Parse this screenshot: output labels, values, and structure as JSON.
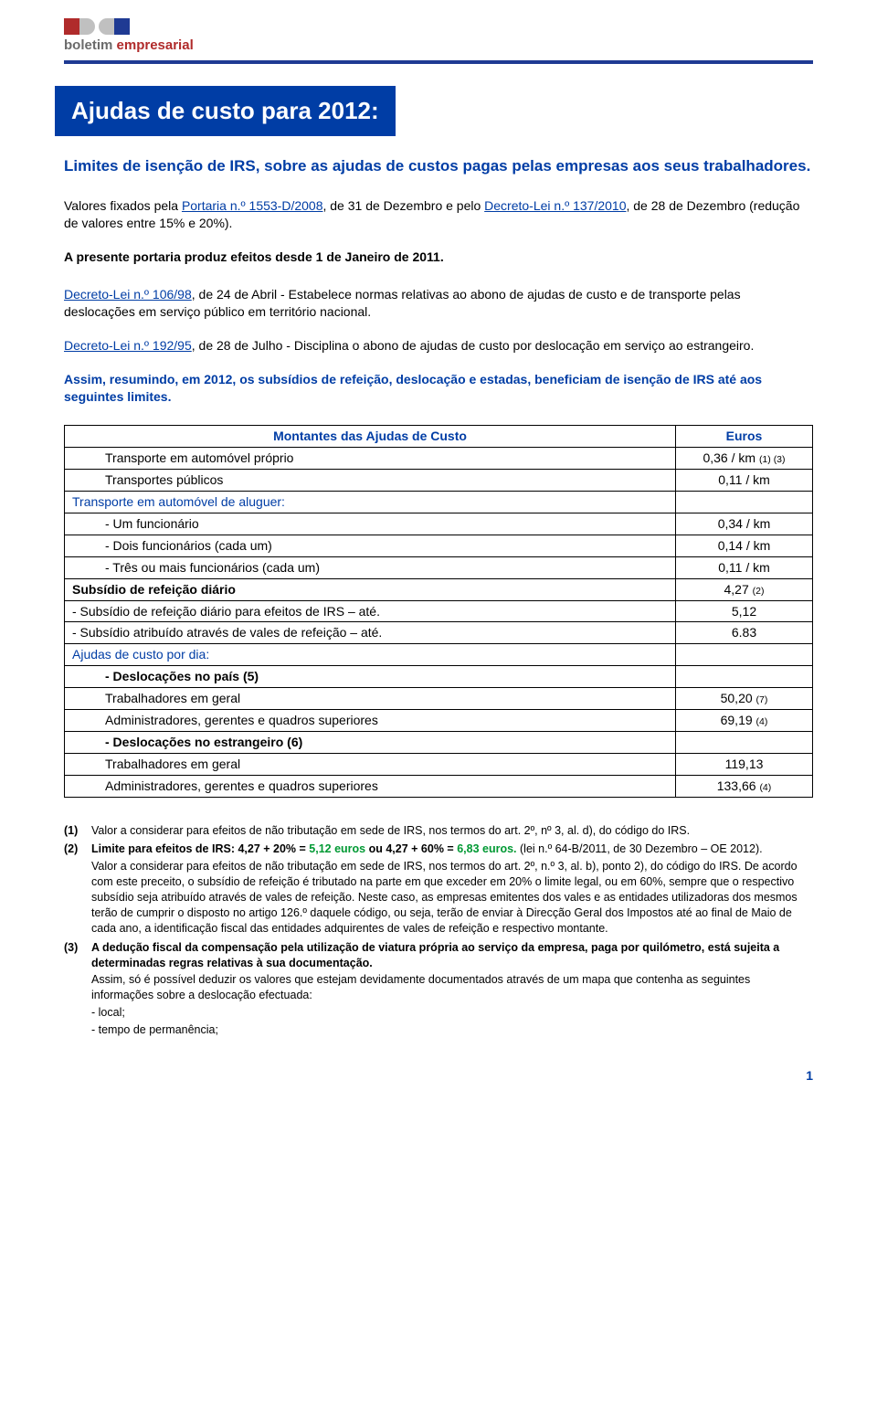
{
  "logo": {
    "word1": "boletim",
    "word2": "empresarial"
  },
  "title": "Ajudas de custo para 2012:",
  "subtitle": "Limites de isenção de IRS, sobre as ajudas de custos pagas pelas empresas aos seus trabalhadores.",
  "p1_a": "Valores fixados pela ",
  "p1_link1": "Portaria n.º 1553-D/2008",
  "p1_b": ", de 31 de Dezembro e pelo ",
  "p1_link2": "Decreto-Lei n.º 137/2010",
  "p1_c": ", de 28 de Dezembro (redução de valores entre 15% e 20%).",
  "p2": "A presente portaria produz efeitos desde 1 de Janeiro de 2011.",
  "p3_link": "Decreto-Lei n.º 106/98",
  "p3_body": ", de 24 de Abril - Estabelece normas relativas ao abono de ajudas de custo e de transporte pelas deslocações em serviço público em território nacional.",
  "p4_link": "Decreto-Lei n.º 192/95",
  "p4_body": ", de 28 de Julho - Disciplina o abono de ajudas de custo por deslocação em serviço ao estrangeiro.",
  "summary": "Assim, resumindo, em 2012, os subsídios de refeição, deslocação e estadas, beneficiam de isenção de IRS até aos seguintes limites.",
  "table": {
    "hdr_left": "Montantes das Ajudas de Custo",
    "hdr_right": "Euros",
    "rows": [
      {
        "label": "Transporte em automóvel próprio",
        "value": "0,36 / km",
        "note": "(1) (3)",
        "indent": true
      },
      {
        "label": "Transportes públicos",
        "value": "0,11 / km",
        "indent": true
      },
      {
        "label": "Transporte em automóvel de aluguer:",
        "value": "",
        "blue": true
      },
      {
        "label": "- Um funcionário",
        "value": "0,34 / km",
        "indent": true
      },
      {
        "label": "- Dois funcionários (cada um)",
        "value": "0,14 / km",
        "indent": true
      },
      {
        "label": "- Três ou mais funcionários (cada um)",
        "value": "0,11 / km",
        "indent": true
      },
      {
        "label": "Subsídio de refeição diário",
        "value": "4,27",
        "note": "(2)",
        "bold": true
      },
      {
        "label": "-    Subsídio de refeição diário para efeitos de IRS – até.",
        "value": "5,12"
      },
      {
        "label": "-    Subsídio atribuído através de vales de refeição – até.",
        "value": "6.83"
      },
      {
        "label": "Ajudas de custo por dia:",
        "value": "",
        "blue": true
      },
      {
        "label": "- Deslocações no país (5)",
        "value": "",
        "indent": true,
        "bold": true
      },
      {
        "label": "Trabalhadores em geral",
        "value": "50,20",
        "note": "(7)",
        "indent": true
      },
      {
        "label": "Administradores, gerentes e quadros superiores",
        "value": "69,19",
        "note": "(4)",
        "indent": true
      },
      {
        "label": "- Deslocações no estrangeiro (6)",
        "value": "",
        "indent": true,
        "bold": true
      },
      {
        "label": "Trabalhadores em geral",
        "value": "119,13",
        "indent": true
      },
      {
        "label": "Administradores, gerentes e quadros superiores",
        "value": "133,66",
        "note": "(4)",
        "indent": true
      }
    ]
  },
  "footnotes": {
    "fn1": {
      "num": "(1)",
      "text": "Valor a considerar para efeitos de não tributação em sede de IRS, nos termos do art. 2º, nº 3, al. d), do código do IRS."
    },
    "fn2": {
      "num": "(2)",
      "bold_a": "Limite para efeitos de IRS: 4,27 + 20% = ",
      "green_a": "5,12 euros",
      "bold_b": " ou 4,27 + 60% = ",
      "green_b": "6,83 euros.",
      "tail": " (lei n.º 64-B/2011, de 30 Dezembro – OE 2012).",
      "p2": "Valor a considerar para efeitos de não tributação em sede de IRS, nos termos do art. 2º, n.º 3, al. b), ponto 2), do código do IRS. De acordo com este preceito, o subsídio de refeição é tributado na parte em que exceder em 20% o limite legal, ou em 60%, sempre que o respectivo subsídio seja atribuído através de vales de refeição. Neste caso, as empresas emitentes dos vales e as entidades utilizadoras dos mesmos terão de cumprir o disposto no artigo 126.º daquele código, ou seja, terão de enviar à Direcção Geral dos Impostos até ao final de Maio de cada ano, a identificação fiscal das entidades adquirentes de vales de refeição e respectivo montante."
    },
    "fn3": {
      "num": "(3)",
      "bold": "A dedução fiscal da compensação pela utilização de viatura própria ao serviço da empresa, paga por quilómetro, está sujeita a determinadas regras relativas à sua documentação.",
      "p2": "Assim, só é possível deduzir os valores que estejam devidamente documentados através de um mapa que contenha as seguintes informações sobre a deslocação efectuada:",
      "li1": "- local;",
      "li2": "- tempo de permanência;"
    }
  },
  "page_num": "1"
}
